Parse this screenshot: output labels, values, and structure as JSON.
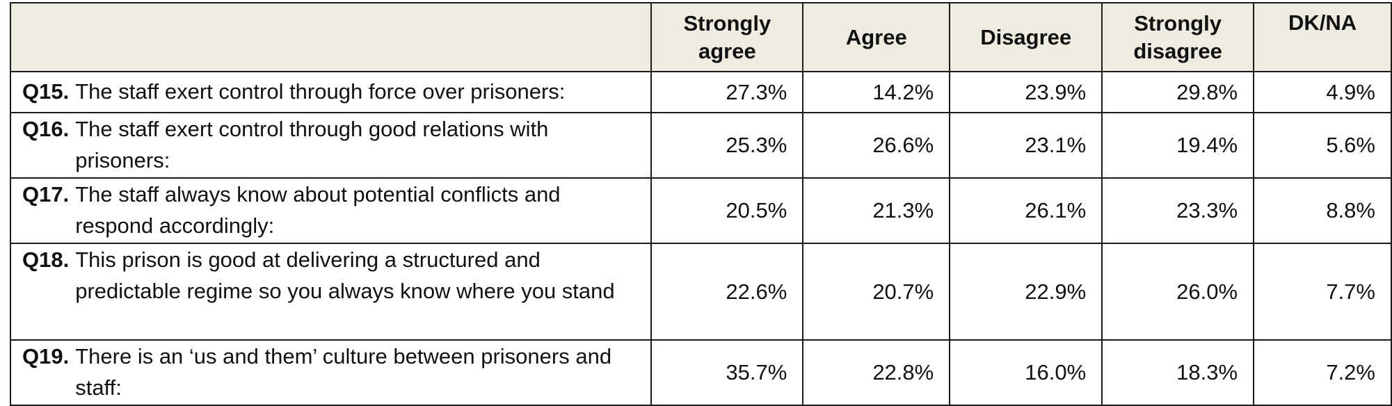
{
  "table": {
    "headers": [
      "Strongly agree",
      "Agree",
      "Disagree",
      "Strongly disagree",
      "DK/NA"
    ],
    "rows": [
      {
        "id": "Q15.",
        "text": "The staff exert control through force over prisoners:",
        "values": [
          "27.3%",
          "14.2%",
          "23.9%",
          "29.8%",
          "4.9%"
        ]
      },
      {
        "id": "Q16.",
        "text": "The staff exert control through good relations with prisoners:",
        "values": [
          "25.3%",
          "26.6%",
          "23.1%",
          "19.4%",
          "5.6%"
        ]
      },
      {
        "id": "Q17.",
        "text": "The staff always know about potential conflicts and respond accordingly:",
        "values": [
          "20.5%",
          "21.3%",
          "26.1%",
          "23.3%",
          "8.8%"
        ]
      },
      {
        "id": "Q18.",
        "text": "This prison is good at delivering a structured and predictable regime so you always know where you stand",
        "values": [
          "22.6%",
          "20.7%",
          "22.9%",
          "26.0%",
          "7.7%"
        ]
      },
      {
        "id": "Q19.",
        "text": "There is an ‘us and them’ culture between prisoners and staff:",
        "values": [
          "35.7%",
          "22.8%",
          "16.0%",
          "18.3%",
          "7.2%"
        ]
      }
    ]
  },
  "colors": {
    "header_background": "#eeece1",
    "border": "#1a1a1a"
  }
}
